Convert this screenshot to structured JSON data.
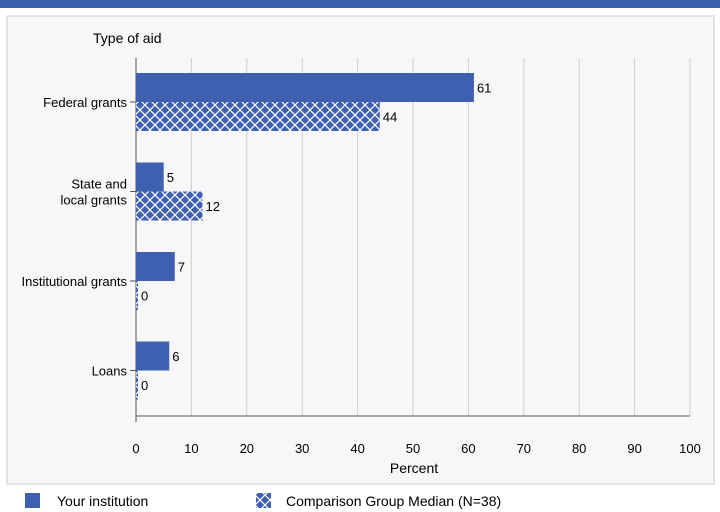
{
  "colors": {
    "top_band": "#3B5DAA",
    "series_primary": "#3F5FB0",
    "panel_bg": "#F7F7F7",
    "panel_border": "#CCCCCC",
    "grid": "#CFCFCF",
    "axis": "#555555"
  },
  "chart_data": {
    "type": "bar",
    "orientation": "horizontal",
    "title": "",
    "category_axis_title": "Type of aid",
    "xlabel": "Percent",
    "xlim": [
      0,
      100
    ],
    "ticks": [
      "0",
      "10",
      "20",
      "30",
      "40",
      "50",
      "60",
      "70",
      "80",
      "90",
      "100"
    ],
    "grid": true,
    "legend_position": "bottom",
    "categories": [
      [
        "Federal grants"
      ],
      [
        "State and",
        "local grants"
      ],
      [
        "Institutional grants"
      ],
      [
        "Loans"
      ]
    ],
    "series": [
      {
        "name": "Your institution",
        "pattern": "solid",
        "values": [
          61,
          5,
          7,
          6
        ]
      },
      {
        "name": "Comparison Group Median (N=38)",
        "pattern": "crosshatch",
        "values": [
          44,
          12,
          0,
          0
        ]
      }
    ]
  }
}
